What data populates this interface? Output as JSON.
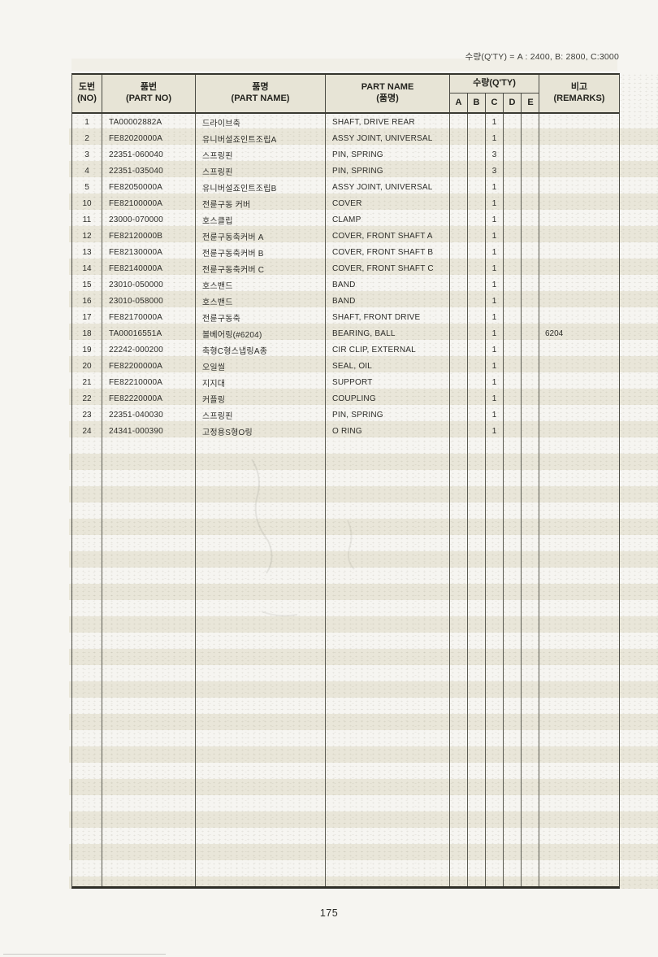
{
  "page": {
    "qty_legend": "수량(Q'TY) = A : 2400, B: 2800, C:3000",
    "page_number": "175"
  },
  "colors": {
    "page_bg": "#f6f5f1",
    "scan_band": "#e9e6d9",
    "header_bg": "#e7e4d6",
    "border_dark": "#35352e",
    "border_mid": "#5b5b52",
    "text": "#2f2f2b"
  },
  "table": {
    "headers": {
      "no_l1": "도번",
      "no_l2": "(NO)",
      "partno_l1": "품번",
      "partno_l2": "(PART NO)",
      "kname_l1": "품명",
      "kname_l2": "(PART NAME)",
      "ename_l1": "PART NAME",
      "ename_l2": "(품명)",
      "qty_label": "수량(Q'TY)",
      "qty_cols": [
        "A",
        "B",
        "C",
        "D",
        "E"
      ],
      "remarks_l1": "비고",
      "remarks_l2": "(REMARKS)"
    },
    "rows": [
      {
        "no": "1",
        "part_no": "TA00002882A",
        "name_ko": "드라이브축",
        "name_en": "SHAFT, DRIVE REAR",
        "qty_c": "1"
      },
      {
        "no": "2",
        "part_no": "FE82020000A",
        "name_ko": "유니버설죠인트조립A",
        "name_en": "ASSY JOINT, UNIVERSAL",
        "qty_c": "1"
      },
      {
        "no": "3",
        "part_no": "22351-060040",
        "name_ko": "스프링핀",
        "name_en": "PIN, SPRING",
        "qty_c": "3"
      },
      {
        "no": "4",
        "part_no": "22351-035040",
        "name_ko": "스프링핀",
        "name_en": "PIN, SPRING",
        "qty_c": "3"
      },
      {
        "no": "5",
        "part_no": "FE82050000A",
        "name_ko": "유니버설죠인트조립B",
        "name_en": "ASSY JOINT, UNIVERSAL",
        "qty_c": "1"
      },
      {
        "no": "10",
        "part_no": "FE82100000A",
        "name_ko": "전륜구동 커버",
        "name_en": "COVER",
        "qty_c": "1"
      },
      {
        "no": "11",
        "part_no": "23000-070000",
        "name_ko": "호스클립",
        "name_en": "CLAMP",
        "qty_c": "1"
      },
      {
        "no": "12",
        "part_no": "FE82120000B",
        "name_ko": "전륜구동축커버 A",
        "name_en": "COVER, FRONT SHAFT A",
        "qty_c": "1"
      },
      {
        "no": "13",
        "part_no": "FE82130000A",
        "name_ko": "전륜구동축커버 B",
        "name_en": "COVER, FRONT SHAFT B",
        "qty_c": "1"
      },
      {
        "no": "14",
        "part_no": "FE82140000A",
        "name_ko": "전륜구동축커버 C",
        "name_en": "COVER, FRONT SHAFT C",
        "qty_c": "1"
      },
      {
        "no": "15",
        "part_no": "23010-050000",
        "name_ko": "호스밴드",
        "name_en": "BAND",
        "qty_c": "1"
      },
      {
        "no": "16",
        "part_no": "23010-058000",
        "name_ko": "호스밴드",
        "name_en": "BAND",
        "qty_c": "1"
      },
      {
        "no": "17",
        "part_no": "FE82170000A",
        "name_ko": "전륜구동축",
        "name_en": "SHAFT, FRONT DRIVE",
        "qty_c": "1"
      },
      {
        "no": "18",
        "part_no": "TA00016551A",
        "name_ko": "볼베어링(#6204)",
        "name_en": "BEARING, BALL",
        "qty_c": "1",
        "remarks": "6204"
      },
      {
        "no": "19",
        "part_no": "22242-000200",
        "name_ko": "축형C형스냅링A종",
        "name_en": "CIR CLIP, EXTERNAL",
        "qty_c": "1"
      },
      {
        "no": "20",
        "part_no": "FE82200000A",
        "name_ko": "오일씰",
        "name_en": "SEAL, OIL",
        "qty_c": "1"
      },
      {
        "no": "21",
        "part_no": "FE82210000A",
        "name_ko": "지지대",
        "name_en": "SUPPORT",
        "qty_c": "1"
      },
      {
        "no": "22",
        "part_no": "FE82220000A",
        "name_ko": "커플링",
        "name_en": "COUPLING",
        "qty_c": "1"
      },
      {
        "no": "23",
        "part_no": "22351-040030",
        "name_ko": "스프링핀",
        "name_en": "PIN, SPRING",
        "qty_c": "1"
      },
      {
        "no": "24",
        "part_no": "24341-000390",
        "name_ko": "고정용S형O링",
        "name_en": "O RING",
        "qty_c": "1"
      }
    ]
  }
}
